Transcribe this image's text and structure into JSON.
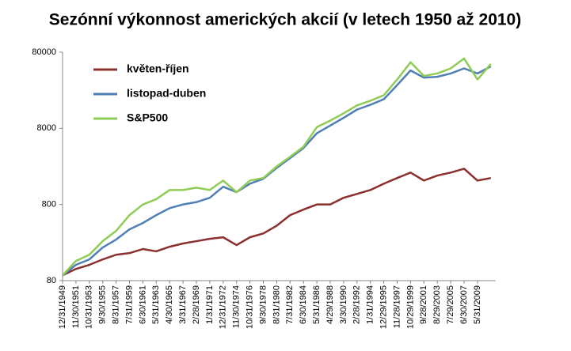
{
  "chart_data": {
    "type": "line",
    "title": "Sezónní výkonnost amerických akcií (v letech 1950 až 2010)",
    "categories": [
      "12/31/1949",
      "11/30/1951",
      "10/31/1953",
      "9/30/1955",
      "8/31/1957",
      "7/31/1959",
      "6/30/1961",
      "5/31/1963",
      "4/30/1965",
      "3/31/1967",
      "2/28/1969",
      "1/31/1971",
      "12/31/1972",
      "11/30/1974",
      "10/31/1976",
      "9/30/1978",
      "8/31/1980",
      "7/31/1982",
      "6/30/1984",
      "5/31/1986",
      "4/29/1988",
      "3/30/1990",
      "2/28/1992",
      "1/31/1994",
      "12/29/1995",
      "11/28/1997",
      "10/29/1999",
      "9/28/2001",
      "8/29/2003",
      "7/29/2005",
      "6/30/2007",
      "5/31/2009",
      null
    ],
    "series": [
      {
        "name": "květen-říjen",
        "color": "#8b2f2f",
        "values": [
          94,
          114,
          129,
          152,
          175,
          184,
          208,
          194,
          223,
          246,
          264,
          283,
          297,
          234,
          297,
          333,
          421,
          580,
          686,
          800,
          800,
          980,
          1100,
          1240,
          1500,
          1780,
          2100,
          1650,
          1920,
          2100,
          2360,
          1650,
          1780
        ]
      },
      {
        "name": "listopad-duben",
        "color": "#4f7fb5",
        "values": [
          94,
          129,
          152,
          218,
          277,
          377,
          457,
          580,
          716,
          800,
          860,
          980,
          1370,
          1160,
          1500,
          1740,
          2420,
          3250,
          4400,
          6900,
          8700,
          11000,
          14100,
          16300,
          19300,
          29600,
          46000,
          37000,
          38000,
          42000,
          49000,
          42000,
          52000
        ]
      },
      {
        "name": "S&P500",
        "color": "#8fcc55",
        "values": [
          94,
          145,
          175,
          264,
          360,
          580,
          800,
          940,
          1240,
          1240,
          1330,
          1240,
          1650,
          1160,
          1650,
          1780,
          2530,
          3380,
          4590,
          8300,
          10100,
          12600,
          16000,
          18400,
          21800,
          35000,
          59000,
          39000,
          42000,
          49000,
          66000,
          35000,
          56000
        ]
      }
    ],
    "ylim": [
      80,
      80000
    ],
    "yticks": [
      80,
      800,
      8000,
      80000
    ],
    "log_y": true,
    "legend": "top-left"
  }
}
